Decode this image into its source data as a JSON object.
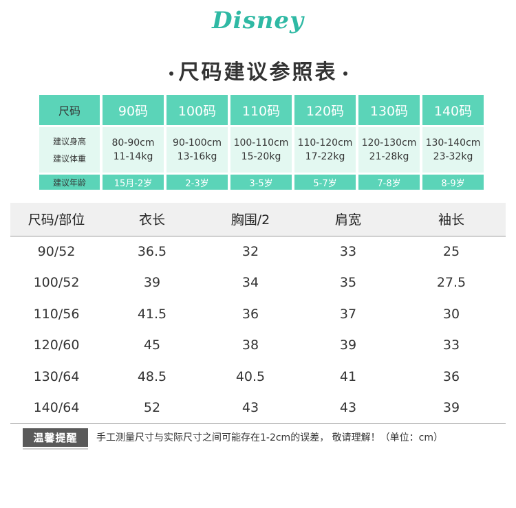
{
  "brand": {
    "logo_text": "Disney"
  },
  "page_title": "尺码建议参照表",
  "size_guide": {
    "label_column": {
      "header": "尺码",
      "rows": [
        "建议身高",
        "建议体重"
      ],
      "footer": "建议年龄"
    },
    "sizes": [
      {
        "size": "90码",
        "height": "80-90cm",
        "weight": "11-14kg",
        "age": "15月-2岁"
      },
      {
        "size": "100码",
        "height": "90-100cm",
        "weight": "13-16kg",
        "age": "2-3岁"
      },
      {
        "size": "110码",
        "height": "100-110cm",
        "weight": "15-20kg",
        "age": "3-5岁"
      },
      {
        "size": "120码",
        "height": "110-120cm",
        "weight": "17-22kg",
        "age": "5-7岁"
      },
      {
        "size": "130码",
        "height": "120-130cm",
        "weight": "21-28kg",
        "age": "7-8岁"
      },
      {
        "size": "140码",
        "height": "130-140cm",
        "weight": "23-32kg",
        "age": "8-9岁"
      }
    ]
  },
  "measurements": {
    "headers": [
      "尺码/部位",
      "衣长",
      "胸围/2",
      "肩宽",
      "袖长"
    ],
    "rows": [
      [
        "90/52",
        "36.5",
        "32",
        "33",
        "25"
      ],
      [
        "100/52",
        "39",
        "34",
        "35",
        "27.5"
      ],
      [
        "110/56",
        "41.5",
        "36",
        "37",
        "30"
      ],
      [
        "120/60",
        "45",
        "38",
        "39",
        "33"
      ],
      [
        "130/64",
        "48.5",
        "40.5",
        "41",
        "36"
      ],
      [
        "140/64",
        "52",
        "43",
        "43",
        "39"
      ]
    ]
  },
  "tip": {
    "badge": "温馨提醒",
    "text": "手工测量尺寸与实际尺寸之间可能存在1-2cm的误差，  敬请理解！（单位：cm）"
  },
  "colors": {
    "accent": "#5bd4b8",
    "accent_light": "#e3f8f1",
    "logo": "#2fb9a4",
    "badge": "#5a5a5a"
  }
}
